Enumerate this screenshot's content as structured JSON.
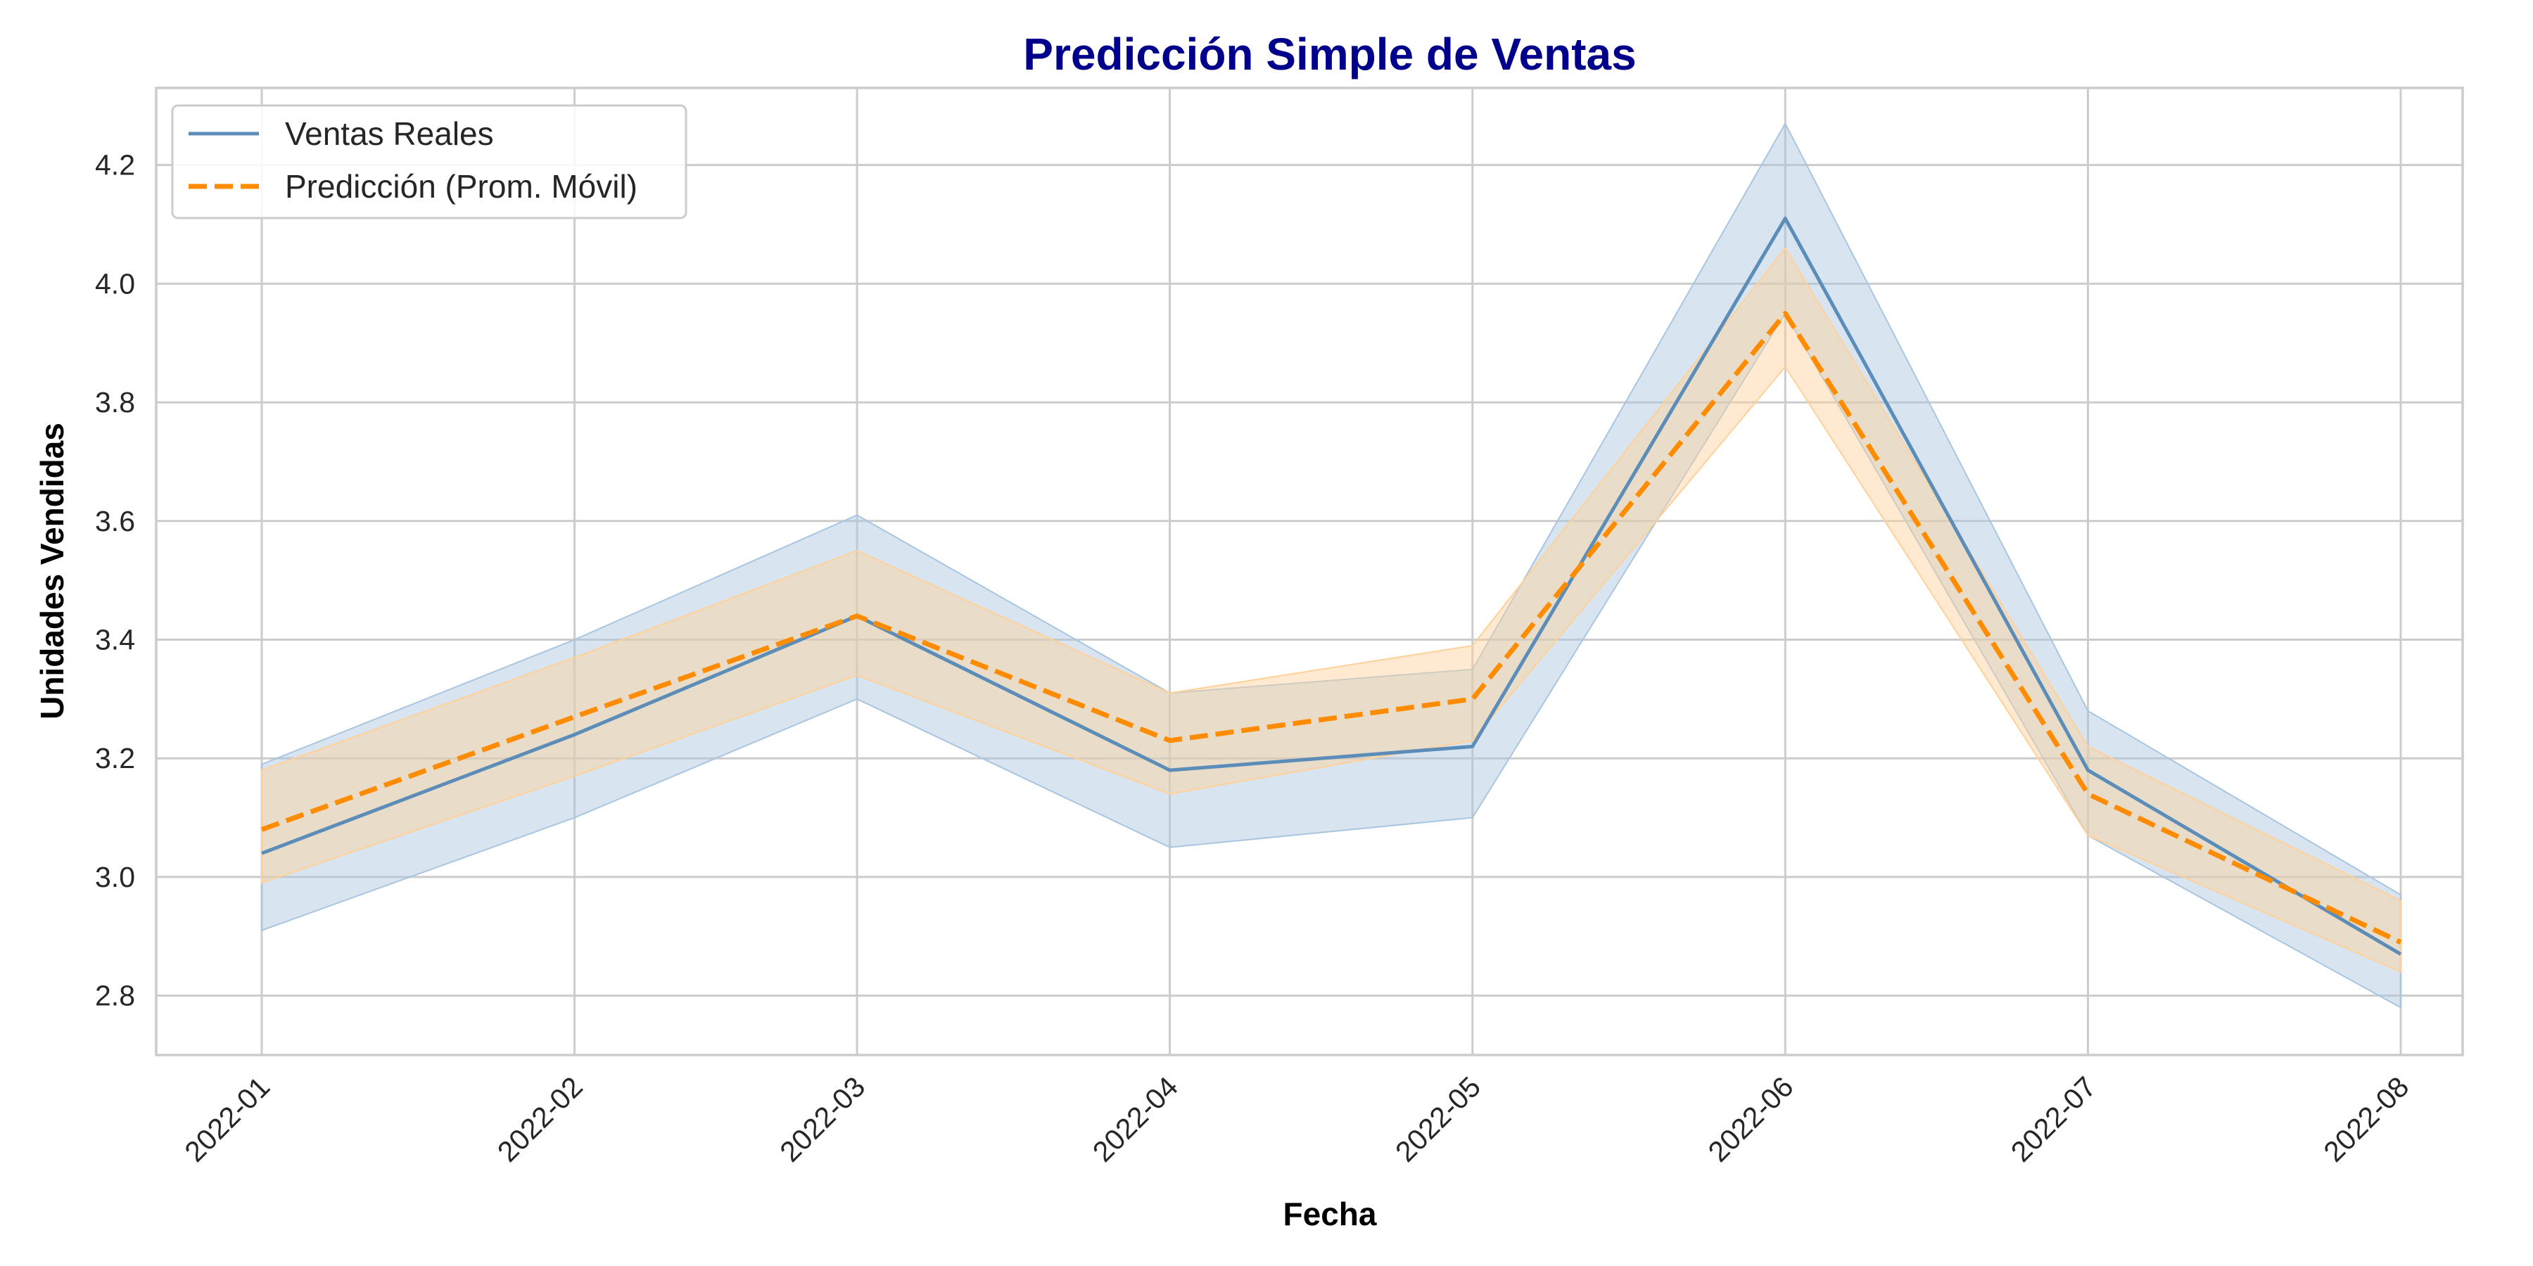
{
  "chart_data": {
    "type": "line",
    "title": "Predicción Simple de Ventas",
    "xlabel": "Fecha",
    "ylabel": "Unidades Vendidas",
    "categories": [
      "2022-01",
      "2022-02",
      "2022-03",
      "2022-04",
      "2022-05",
      "2022-06",
      "2022-07",
      "2022-08"
    ],
    "x_dates": [
      "2022-01-01",
      "2022-02-01",
      "2022-03-01",
      "2022-04-01",
      "2022-05-01",
      "2022-06-01",
      "2022-07-01",
      "2022-08-01"
    ],
    "ylim": [
      2.7,
      4.33
    ],
    "yticks": [
      "2.8",
      "3.0",
      "3.2",
      "3.4",
      "3.6",
      "3.8",
      "4.0",
      "4.2"
    ],
    "grid": true,
    "legend_position": "top-left",
    "series": [
      {
        "name": "Ventas Reales",
        "values": [
          3.04,
          3.24,
          3.44,
          3.18,
          3.22,
          4.11,
          3.18,
          2.87
        ],
        "band_upper": [
          3.19,
          3.4,
          3.61,
          3.31,
          3.35,
          4.27,
          3.28,
          2.97
        ],
        "band_lower": [
          2.91,
          3.1,
          3.3,
          3.05,
          3.1,
          3.95,
          3.07,
          2.78
        ],
        "color": "#5b8db8",
        "band_color": "#a9c6e0",
        "style": "solid"
      },
      {
        "name": "Predicción (Prom. Móvil)",
        "values": [
          3.08,
          3.27,
          3.44,
          3.23,
          3.3,
          3.95,
          3.14,
          2.89
        ],
        "band_upper": [
          3.18,
          3.37,
          3.55,
          3.31,
          3.39,
          4.06,
          3.22,
          2.96
        ],
        "band_lower": [
          2.99,
          3.17,
          3.34,
          3.14,
          3.23,
          3.86,
          3.07,
          2.84
        ],
        "color": "#ff8c00",
        "band_color": "#ffd199",
        "style": "dashed"
      }
    ],
    "title_color": "#00008b"
  }
}
